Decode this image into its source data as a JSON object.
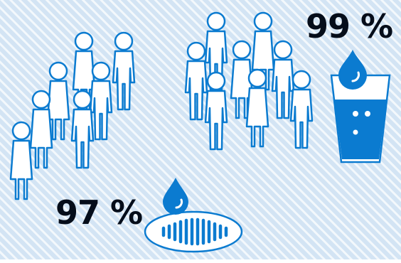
{
  "stats": {
    "right_percentage": "99 %",
    "left_percentage": "97 %"
  },
  "colors": {
    "background": "#d3e4f4",
    "stripe": "#f3f8fc",
    "figure_fill": "#ffffff",
    "figure_stroke": "#0b7bd0",
    "water": "#0b7bd0",
    "text": "#050d1a"
  },
  "icons": {
    "people_group_left": "person-icon",
    "people_group_right": "person-icon",
    "glass": "water-glass-icon",
    "drop": "water-drop-icon",
    "basin": "water-basin-icon"
  }
}
